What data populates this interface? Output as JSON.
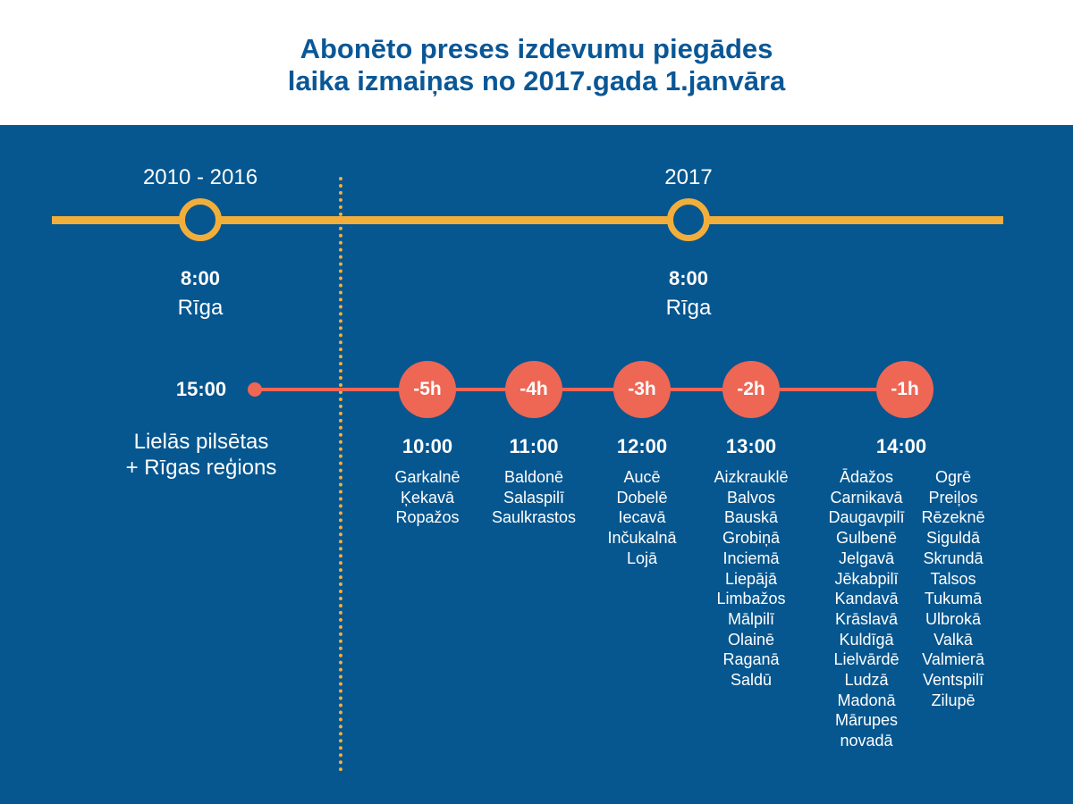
{
  "title": {
    "line1": "Abonēto preses izdevumu piegādes",
    "line2": "laika izmaiņas no 2017.gada 1.janvāra"
  },
  "colors": {
    "header_text": "#0a5796",
    "background": "#06568f",
    "gold": "#f2ae3b",
    "red": "#ee6654",
    "text": "#ffffff"
  },
  "timeline": {
    "before": {
      "period": "2010 - 2016",
      "time": "8:00",
      "place": "Rīga"
    },
    "after": {
      "period": "2017",
      "time": "8:00",
      "place": "Rīga"
    }
  },
  "regions_before": {
    "time": "15:00",
    "label_line1": "Lielās pilsētas",
    "label_line2": "+ Rīgas reģions"
  },
  "shifts": [
    {
      "offset": "-5h",
      "time": "10:00",
      "towns": [
        "Garkalnē",
        "Ķekavā",
        "Ropažos"
      ]
    },
    {
      "offset": "-4h",
      "time": "11:00",
      "towns": [
        "Baldonē",
        "Salaspilī",
        "Saulkrastos"
      ]
    },
    {
      "offset": "-3h",
      "time": "12:00",
      "towns": [
        "Aucē",
        "Dobelē",
        "Iecavā",
        "Inčukalnā",
        "Lojā"
      ]
    },
    {
      "offset": "-2h",
      "time": "13:00",
      "towns": [
        "Aizkrauklē",
        "Balvos",
        "Bauskā",
        "Grobiņā",
        "Inciemā",
        "Liepājā",
        "Limbažos",
        "Mālpilī",
        "Olainē",
        "Raganā",
        "Saldū"
      ]
    },
    {
      "offset": "-1h",
      "time": "14:00",
      "towns_col1": [
        "Ādažos",
        "Carnikavā",
        "Daugavpilī",
        "Gulbenē",
        "Jelgavā",
        "Jēkabpilī",
        "Kandavā",
        "Krāslavā",
        "Kuldīgā",
        "Lielvārdē",
        "Ludzā",
        "Madonā",
        "Mārupes",
        "novadā"
      ],
      "towns_col2": [
        "Ogrē",
        "Preiļos",
        "Rēzeknē",
        "Siguldā",
        "Skrundā",
        "Talsos",
        "Tukumā",
        "Ulbrokā",
        "Valkā",
        "Valmierā",
        "Ventspilī",
        "Zilupē"
      ]
    }
  ]
}
